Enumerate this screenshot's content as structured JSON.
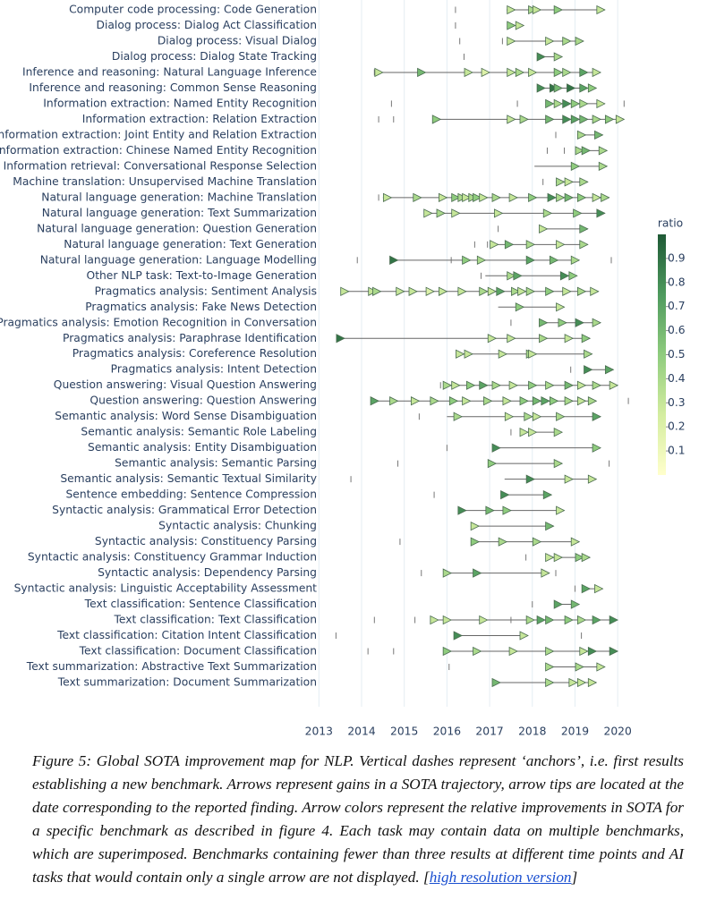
{
  "chart_data": {
    "type": "arrow-timeline",
    "xlim": [
      2012.7,
      2020.5
    ],
    "xticks": [
      2013,
      2014,
      2015,
      2016,
      2017,
      2018,
      2019,
      2020
    ],
    "grid": true,
    "colorbar_title": "ratio",
    "clim": [
      0,
      1
    ],
    "cticks": [
      0.1,
      0.2,
      0.3,
      0.4,
      0.5,
      0.6,
      0.7,
      0.8,
      0.9
    ],
    "colorscale": [
      "#ffffcc",
      "#d4eda0",
      "#8fcc7e",
      "#4e9a5e",
      "#1f5a36"
    ],
    "rows": [
      {
        "label": "Computer code processing: Code Generation",
        "start": 2017.4,
        "tips": [
          2017.6,
          2018.1,
          2018.2,
          2018.7,
          2019.7
        ],
        "ratios": [
          0.3,
          0.4,
          0.3,
          0.5,
          0.3
        ],
        "anchors": [
          2016.2
        ]
      },
      {
        "label": "Dialog process: Dialog Act Classification",
        "start": 2017.5,
        "tips": [
          2017.6,
          2017.8
        ],
        "ratios": [
          0.5,
          0.3
        ],
        "anchors": [
          2016.2
        ]
      },
      {
        "label": "Dialog process: Visual Dialog",
        "start": 2017.5,
        "tips": [
          2017.6,
          2018.5,
          2018.9,
          2019.2
        ],
        "ratios": [
          0.3,
          0.3,
          0.4,
          0.4
        ],
        "anchors": [
          2016.3,
          2017.3
        ]
      },
      {
        "label": "Dialog process: Dialog State Tracking",
        "start": 2018.2,
        "tips": [
          2018.3,
          2018.7
        ],
        "ratios": [
          0.8,
          0.4
        ],
        "anchors": [
          2016.4
        ]
      },
      {
        "label": "Inference and reasoning: Natural Language Inference",
        "start": 2014.4,
        "tips": [
          2014.5,
          2015.5,
          2016.6,
          2017.0,
          2017.6,
          2017.8,
          2018.1,
          2018.7,
          2018.9,
          2019.3,
          2019.6
        ],
        "ratios": [
          0.3,
          0.6,
          0.3,
          0.2,
          0.3,
          0.4,
          0.3,
          0.5,
          0.4,
          0.7,
          0.3
        ],
        "anchors": [
          2014.3
        ]
      },
      {
        "label": "Inference and reasoning: Common Sense Reasoning",
        "start": 2018.2,
        "tips": [
          2018.3,
          2018.6,
          2018.7,
          2019.0,
          2019.3,
          2019.5
        ],
        "ratios": [
          0.8,
          0.9,
          0.6,
          0.9,
          0.7,
          0.5
        ],
        "anchors": []
      },
      {
        "label": "Information extraction: Named Entity Recognition",
        "start": 2018.4,
        "tips": [
          2018.5,
          2018.7,
          2018.9,
          2019.1,
          2019.3,
          2019.7
        ],
        "ratios": [
          0.6,
          0.4,
          0.8,
          0.5,
          0.4,
          0.3
        ],
        "anchors": [
          2014.7,
          2017.65,
          2020.15
        ]
      },
      {
        "label": "Information extraction: Relation Extraction",
        "start": 2015.8,
        "tips": [
          2015.85,
          2017.6,
          2017.9,
          2018.5,
          2018.9,
          2019.1,
          2019.3,
          2019.6,
          2019.9,
          2020.15
        ],
        "ratios": [
          0.5,
          0.3,
          0.4,
          0.6,
          0.8,
          0.7,
          0.6,
          0.4,
          0.5,
          0.3
        ],
        "anchors": [
          2014.4,
          2014.75
        ]
      },
      {
        "label": "Information extraction: Joint Entity and Relation Extraction",
        "start": 2019.05,
        "tips": [
          2019.25,
          2019.65
        ],
        "ratios": [
          0.4,
          0.6
        ],
        "anchors": [
          2018.55
        ]
      },
      {
        "label": "Information extraction: Chinese Named Entity Recognition",
        "start": 2019.05,
        "tips": [
          2019.2,
          2019.35,
          2019.75
        ],
        "ratios": [
          0.4,
          0.6,
          0.4
        ],
        "anchors": [
          2018.35,
          2018.75
        ]
      },
      {
        "label": "Information retrieval: Conversational Response Selection",
        "start": 2018.05,
        "tips": [
          2019.1,
          2019.75
        ],
        "ratios": [
          0.5,
          0.4
        ],
        "anchors": []
      },
      {
        "label": "Machine translation: Unsupervised Machine Translation",
        "start": 2018.55,
        "tips": [
          2018.75,
          2018.95,
          2019.3
        ],
        "ratios": [
          0.4,
          0.3,
          0.4
        ],
        "anchors": [
          2018.25
        ]
      },
      {
        "label": "Natural language generation: Machine Translation",
        "start": 2014.5,
        "tips": [
          2014.7,
          2015.4,
          2016.0,
          2016.3,
          2016.45,
          2016.55,
          2016.7,
          2016.8,
          2016.95,
          2017.25,
          2017.65,
          2018.1,
          2018.55,
          2018.75,
          2018.95,
          2019.25,
          2019.6,
          2019.8
        ],
        "ratios": [
          0.3,
          0.4,
          0.3,
          0.5,
          0.4,
          0.3,
          0.4,
          0.5,
          0.3,
          0.4,
          0.3,
          0.5,
          0.8,
          0.4,
          0.6,
          0.5,
          0.3,
          0.4
        ],
        "anchors": [
          2014.4
        ]
      },
      {
        "label": "Natural language generation: Text Summarization",
        "start": 2015.55,
        "tips": [
          2015.65,
          2015.95,
          2016.3,
          2017.3,
          2018.45,
          2019.15,
          2019.7
        ],
        "ratios": [
          0.3,
          0.4,
          0.3,
          0.3,
          0.4,
          0.5,
          0.8
        ],
        "anchors": []
      },
      {
        "label": "Natural language generation: Question Generation",
        "start": 2018.2,
        "tips": [
          2018.35,
          2019.3
        ],
        "ratios": [
          0.3,
          0.6
        ],
        "anchors": [
          2017.2
        ]
      },
      {
        "label": "Natural language generation: Text Generation",
        "start": 2017.1,
        "tips": [
          2017.2,
          2017.55,
          2018.05,
          2018.75,
          2019.3
        ],
        "ratios": [
          0.3,
          0.6,
          0.4,
          0.3,
          0.4
        ],
        "anchors": [
          2016.65,
          2016.95
        ]
      },
      {
        "label": "Natural language generation: Language Modelling",
        "start": 2014.75,
        "tips": [
          2014.85,
          2016.55,
          2016.9,
          2018.05,
          2018.6,
          2019.1
        ],
        "ratios": [
          0.9,
          0.5,
          0.4,
          0.7,
          0.6,
          0.4
        ],
        "anchors": [
          2013.9,
          2016.1,
          2019.85
        ]
      },
      {
        "label": "Other NLP task: Text-to-Image Generation",
        "start": 2016.9,
        "tips": [
          2017.6,
          2017.75,
          2018.85,
          2019.05
        ],
        "ratios": [
          0.4,
          0.7,
          0.8,
          0.5
        ],
        "anchors": [
          2016.8
        ]
      },
      {
        "label": "Pragmatics analysis: Sentiment Analysis",
        "start": 2013.55,
        "tips": [
          2013.7,
          2014.35,
          2014.45,
          2015.0,
          2015.3,
          2015.7,
          2016.0,
          2016.45,
          2016.95,
          2017.15,
          2017.35,
          2017.7,
          2017.85,
          2018.05,
          2018.5,
          2018.9,
          2019.25,
          2019.55
        ],
        "ratios": [
          0.3,
          0.3,
          0.4,
          0.3,
          0.3,
          0.2,
          0.3,
          0.3,
          0.4,
          0.3,
          0.7,
          0.4,
          0.3,
          0.4,
          0.5,
          0.3,
          0.4,
          0.3
        ],
        "anchors": []
      },
      {
        "label": "Pragmatics analysis: Fake News Detection",
        "start": 2017.2,
        "tips": [
          2017.8,
          2018.75
        ],
        "ratios": [
          0.5,
          0.3
        ],
        "anchors": []
      },
      {
        "label": "Pragmatics analysis: Emotion Recognition in Conversation",
        "start": 2018.2,
        "tips": [
          2018.35,
          2018.8,
          2019.2,
          2019.6
        ],
        "ratios": [
          0.6,
          0.5,
          0.8,
          0.4
        ],
        "anchors": [
          2017.5
        ]
      },
      {
        "label": "Pragmatics analysis: Paraphrase Identification",
        "start": 2013.55,
        "tips": [
          2013.6,
          2017.15,
          2017.6,
          2018.35,
          2018.95,
          2019.35
        ],
        "ratios": [
          0.9,
          0.3,
          0.3,
          0.4,
          0.3,
          0.5
        ],
        "anchors": []
      },
      {
        "label": "Pragmatics analysis: Coreference Resolution",
        "start": 2016.3,
        "tips": [
          2016.4,
          2016.6,
          2017.4,
          2018.05,
          2018.1,
          2019.4
        ],
        "ratios": [
          0.3,
          0.3,
          0.3,
          0.4,
          0.3,
          0.4
        ],
        "anchors": []
      },
      {
        "label": "Pragmatics analysis: Intent Detection",
        "start": 2019.25,
        "tips": [
          2019.4,
          2019.9
        ],
        "ratios": [
          0.8,
          0.7
        ],
        "anchors": [
          2018.9
        ]
      },
      {
        "label": "Question answering: Visual Question Answering",
        "start": 2016.0,
        "tips": [
          2016.1,
          2016.3,
          2016.65,
          2016.95,
          2017.25,
          2017.65,
          2018.1,
          2018.5,
          2018.95,
          2019.25,
          2019.6,
          2020.0
        ],
        "ratios": [
          0.4,
          0.3,
          0.5,
          0.7,
          0.4,
          0.3,
          0.5,
          0.4,
          0.6,
          0.3,
          0.4,
          0.3
        ],
        "anchors": [
          2015.85
        ]
      },
      {
        "label": "Question answering: Question Answering",
        "start": 2014.3,
        "tips": [
          2014.4,
          2014.85,
          2015.35,
          2015.8,
          2016.25,
          2016.55,
          2017.05,
          2017.5,
          2017.9,
          2018.2,
          2018.4,
          2018.6,
          2018.95,
          2019.25,
          2019.5
        ],
        "ratios": [
          0.7,
          0.4,
          0.3,
          0.4,
          0.5,
          0.3,
          0.4,
          0.3,
          0.5,
          0.6,
          0.7,
          0.5,
          0.4,
          0.3,
          0.4
        ],
        "anchors": [
          2020.25
        ]
      },
      {
        "label": "Semantic analysis: Word Sense Disambiguation",
        "start": 2016.0,
        "tips": [
          2016.35,
          2017.55,
          2018.0,
          2018.2,
          2018.75,
          2019.6
        ],
        "ratios": [
          0.4,
          0.3,
          0.4,
          0.3,
          0.4,
          0.7
        ],
        "anchors": [
          2015.35
        ]
      },
      {
        "label": "Semantic analysis: Semantic Role Labeling",
        "start": 2017.8,
        "tips": [
          2017.9,
          2018.1,
          2018.7
        ],
        "ratios": [
          0.3,
          0.3,
          0.4
        ],
        "anchors": [
          2017.5
        ]
      },
      {
        "label": "Semantic analysis: Entity Disambiguation",
        "start": 2017.2,
        "tips": [
          2017.25,
          2019.6
        ],
        "ratios": [
          0.8,
          0.5
        ],
        "anchors": [
          2016.0
        ]
      },
      {
        "label": "Semantic analysis: Semantic Parsing",
        "start": 2017.1,
        "tips": [
          2017.15,
          2018.7
        ],
        "ratios": [
          0.5,
          0.4
        ],
        "anchors": [
          2014.85,
          2019.8
        ]
      },
      {
        "label": "Semantic analysis: Semantic Textual Similarity",
        "start": 2017.35,
        "tips": [
          2018.05,
          2018.95,
          2019.5
        ],
        "ratios": [
          0.8,
          0.3,
          0.3
        ],
        "anchors": [
          2013.75
        ]
      },
      {
        "label": "Sentence embedding: Sentence Compression",
        "start": 2017.35,
        "tips": [
          2017.45,
          2018.45
        ],
        "ratios": [
          0.8,
          0.7
        ],
        "anchors": [
          2015.7
        ]
      },
      {
        "label": "Syntactic analysis: Grammatical Error Detection",
        "start": 2016.35,
        "tips": [
          2016.45,
          2017.1,
          2017.5,
          2018.75
        ],
        "ratios": [
          0.8,
          0.6,
          0.5,
          0.3
        ],
        "anchors": []
      },
      {
        "label": "Syntactic analysis: Chunking",
        "start": 2016.7,
        "tips": [
          2016.75,
          2018.5
        ],
        "ratios": [
          0.3,
          0.6
        ],
        "anchors": [
          2016.6
        ]
      },
      {
        "label": "Syntactic analysis: Constituency Parsing",
        "start": 2016.7,
        "tips": [
          2016.75,
          2017.4,
          2018.2,
          2019.1
        ],
        "ratios": [
          0.5,
          0.4,
          0.4,
          0.3
        ],
        "anchors": [
          2014.9
        ]
      },
      {
        "label": "Syntactic analysis: Constituency Grammar Induction",
        "start": 2018.45,
        "tips": [
          2018.5,
          2018.7,
          2019.2,
          2019.35
        ],
        "ratios": [
          0.3,
          0.3,
          0.5,
          0.4
        ],
        "anchors": [
          2017.85
        ]
      },
      {
        "label": "Syntactic analysis: Dependency Parsing",
        "start": 2016.0,
        "tips": [
          2016.1,
          2016.8,
          2018.4
        ],
        "ratios": [
          0.4,
          0.7,
          0.3
        ],
        "anchors": [
          2015.4,
          2018.55
        ]
      },
      {
        "label": "Syntactic analysis: Linguistic Acceptability Assessment",
        "start": 2019.2,
        "tips": [
          2019.35,
          2019.65
        ],
        "ratios": [
          0.7,
          0.3
        ],
        "anchors": [
          2019.0
        ]
      },
      {
        "label": "Text classification: Sentence Classification",
        "start": 2018.6,
        "tips": [
          2018.7,
          2019.1
        ],
        "ratios": [
          0.7,
          0.6
        ],
        "anchors": [
          2018.0
        ]
      },
      {
        "label": "Text classification: Text Classification",
        "start": 2015.7,
        "tips": [
          2015.8,
          2016.1,
          2016.95,
          2018.05,
          2018.3,
          2018.5,
          2018.95,
          2019.25,
          2019.6,
          2020.0
        ],
        "ratios": [
          0.3,
          0.3,
          0.3,
          0.4,
          0.7,
          0.6,
          0.5,
          0.4,
          0.7,
          0.8
        ],
        "anchors": [
          2014.3,
          2015.25,
          2017.5
        ]
      },
      {
        "label": "Text classification: Citation Intent Classification",
        "start": 2016.3,
        "tips": [
          2016.35,
          2017.9
        ],
        "ratios": [
          0.8,
          0.3
        ],
        "anchors": [
          2013.4,
          2019.15
        ]
      },
      {
        "label": "Text classification: Document Classification",
        "start": 2016.0,
        "tips": [
          2016.1,
          2016.8,
          2017.65,
          2018.5,
          2019.3,
          2019.5,
          2020.0
        ],
        "ratios": [
          0.5,
          0.4,
          0.3,
          0.4,
          0.3,
          0.8,
          0.8
        ],
        "anchors": [
          2014.15,
          2014.75
        ]
      },
      {
        "label": "Text summarization: Abstractive Text Summarization",
        "start": 2018.4,
        "tips": [
          2018.5,
          2019.2,
          2019.7
        ],
        "ratios": [
          0.4,
          0.4,
          0.3
        ],
        "anchors": [
          2016.05
        ]
      },
      {
        "label": "Text summarization: Document Summarization",
        "start": 2017.15,
        "tips": [
          2017.25,
          2018.5,
          2019.05,
          2019.25,
          2019.5
        ],
        "ratios": [
          0.6,
          0.4,
          0.3,
          0.3,
          0.3
        ],
        "anchors": []
      }
    ]
  },
  "caption": {
    "text": "Figure 5: Global SOTA improvement map for NLP. Vertical dashes represent ‘anchors’, i.e. first results establishing a new benchmark. Arrows represent gains in a SOTA trajectory, arrow tips are located at the date corresponding to the reported finding. Arrow colors represent the relative improvements in SOTA for a specific benchmark as described in figure 4. Each task may contain data on multiple benchmarks, which are superimposed. Benchmarks containing fewer than three results at different time points and AI tasks that would contain only a single arrow are not displayed. [",
    "link": "high resolution version",
    "end": "]"
  }
}
